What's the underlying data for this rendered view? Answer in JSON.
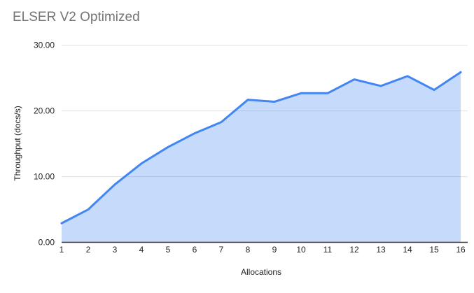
{
  "chart": {
    "colors": {
      "line": "#4285f4",
      "area_fill": "rgba(66,133,244,0.30)",
      "gridline": "#e0e0e0",
      "axis_line": "#333333",
      "title_text": "#757575",
      "axis_text": "#1f1f1f",
      "background": "#ffffff"
    }
  },
  "chart_data": {
    "type": "area",
    "title": "ELSER V2 Optimized",
    "xlabel": "Allocations",
    "ylabel": "Throughput (docs/s)",
    "x": [
      1,
      2,
      3,
      4,
      5,
      6,
      7,
      8,
      9,
      10,
      11,
      12,
      13,
      14,
      15,
      16
    ],
    "x_tick_labels": [
      "1",
      "2",
      "3",
      "4",
      "5",
      "6",
      "7",
      "8",
      "9",
      "10",
      "11",
      "12",
      "13",
      "14",
      "15",
      "16"
    ],
    "series": [
      {
        "name": "Throughput (docs/s)",
        "values": [
          2.9,
          5.0,
          8.8,
          12.0,
          14.5,
          16.6,
          18.3,
          21.7,
          21.4,
          22.7,
          22.7,
          24.8,
          23.8,
          25.3,
          23.2,
          25.9
        ]
      }
    ],
    "xlim": [
      1,
      16
    ],
    "ylim": [
      0,
      30
    ],
    "y_tick_values": [
      0,
      10,
      20,
      30
    ],
    "y_tick_labels": [
      "0.00",
      "10.00",
      "20.00",
      "30.00"
    ],
    "grid": "horizontal",
    "legend": "none"
  }
}
